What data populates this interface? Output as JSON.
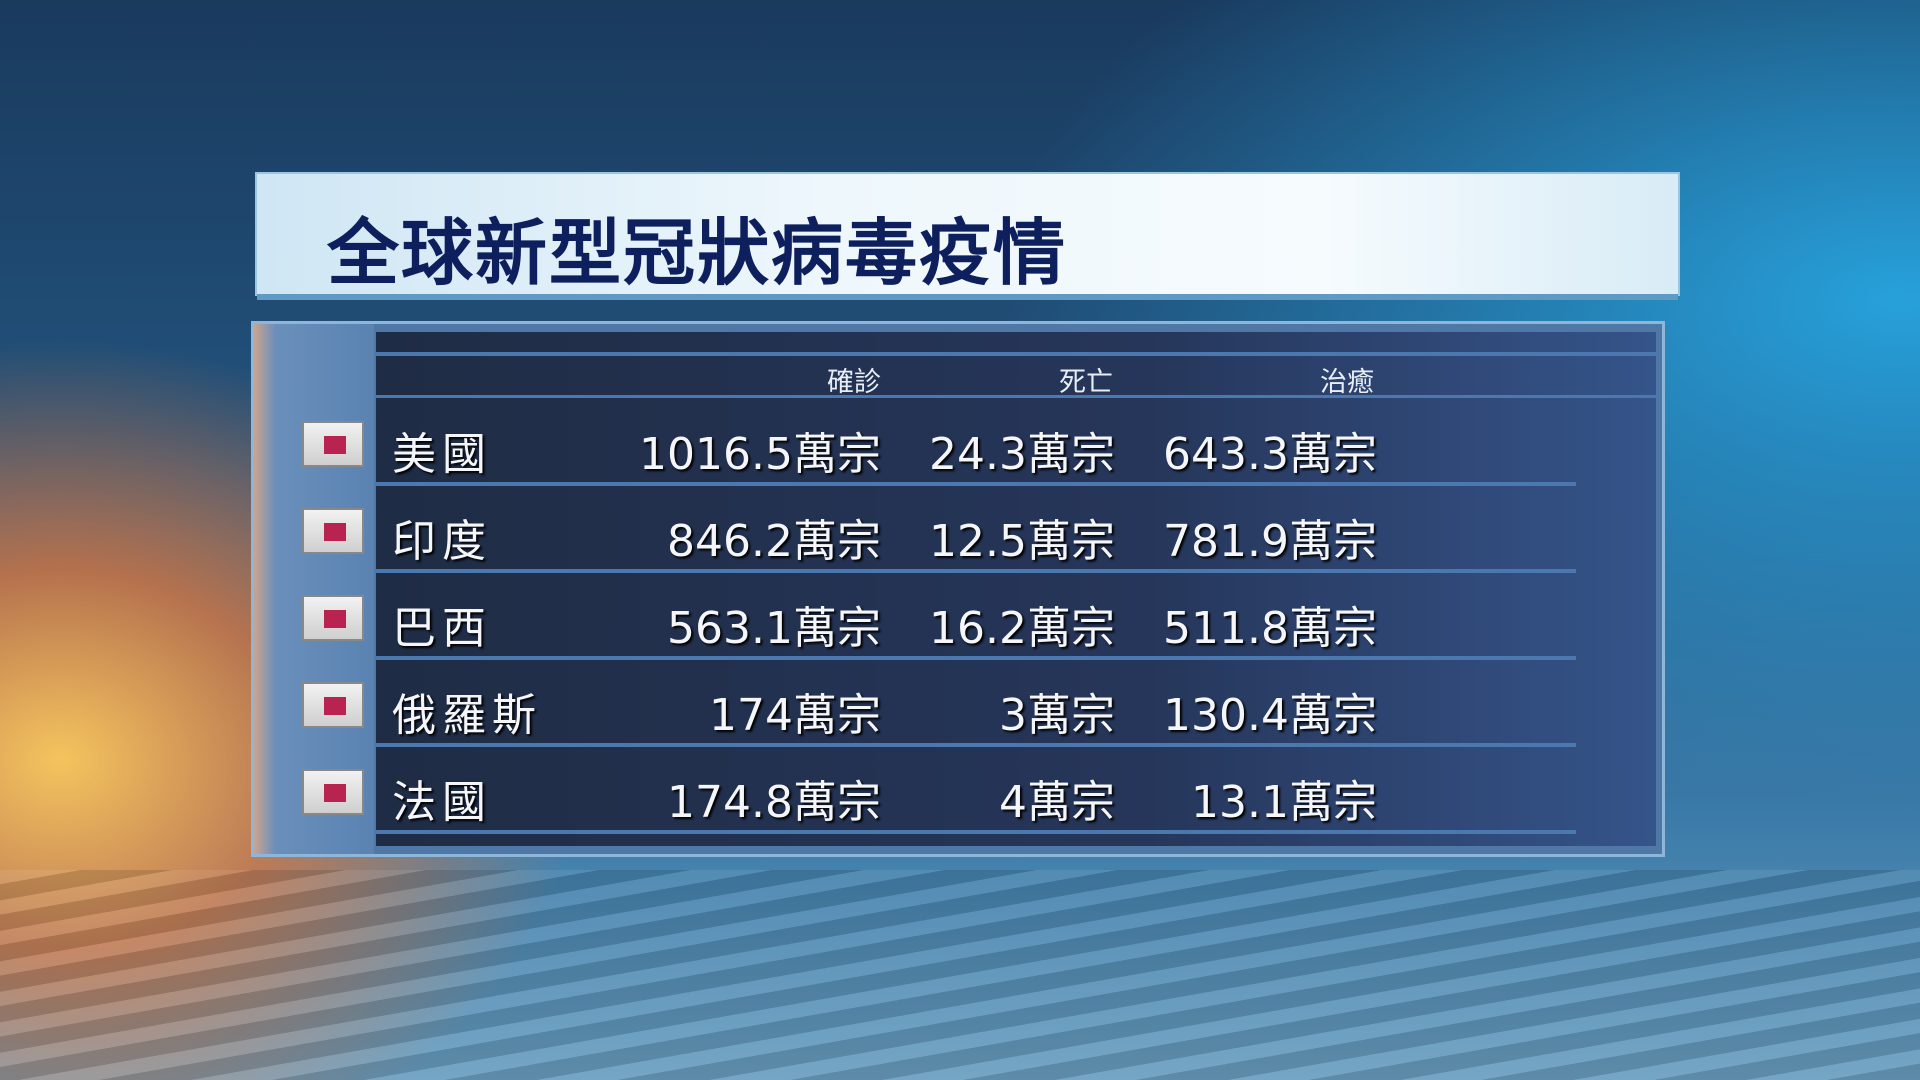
{
  "title": "全球新型冠狀病毒疫情",
  "columns": [
    "確診",
    "死亡",
    "治癒"
  ],
  "rows": [
    {
      "country": "美國",
      "confirmed": "1016.5萬宗",
      "deaths": "24.3萬宗",
      "recovered": "643.3萬宗"
    },
    {
      "country": "印度",
      "confirmed": "846.2萬宗",
      "deaths": "12.5萬宗",
      "recovered": "781.9萬宗"
    },
    {
      "country": "巴西",
      "confirmed": "563.1萬宗",
      "deaths": "16.2萬宗",
      "recovered": "511.8萬宗"
    },
    {
      "country": "俄羅斯",
      "confirmed": "174萬宗",
      "deaths": "3萬宗",
      "recovered": "130.4萬宗"
    },
    {
      "country": "法國",
      "confirmed": "174.8萬宗",
      "deaths": "4萬宗",
      "recovered": "13.1萬宗"
    }
  ],
  "colors": {
    "title": "#0d1f5c",
    "flag_marker": "#b8244f",
    "panel": "#26365a"
  }
}
